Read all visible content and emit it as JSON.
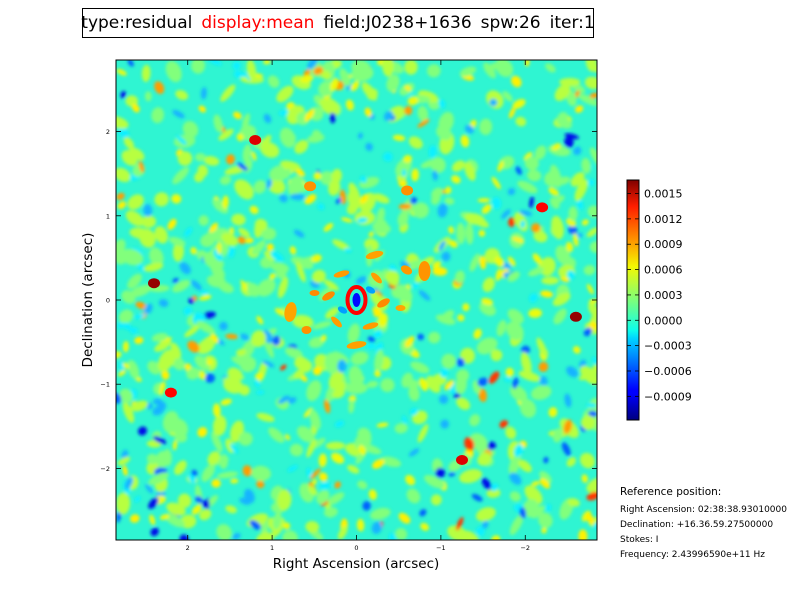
{
  "header": {
    "type": "type:residual",
    "display": "display:mean",
    "field": "field:J0238+1636",
    "spw": "spw:26",
    "iter": "iter:1",
    "highlight_color": "#ff0000"
  },
  "chart_data": {
    "type": "heatmap",
    "xlabel": "Right Ascension (arcsec)",
    "ylabel": "Declination (arcsec)",
    "xlim": [
      2.85,
      -2.85
    ],
    "ylim": [
      -2.85,
      2.85
    ],
    "x_ticks": [
      {
        "value": 2,
        "label": "2"
      },
      {
        "value": 1,
        "label": "1"
      },
      {
        "value": 0,
        "label": "0"
      },
      {
        "value": -1,
        "label": "−1"
      },
      {
        "value": -2,
        "label": "−2"
      }
    ],
    "y_ticks": [
      {
        "value": 2,
        "label": "2"
      },
      {
        "value": 1,
        "label": "1"
      },
      {
        "value": 0,
        "label": "0"
      },
      {
        "value": -1,
        "label": "−1"
      },
      {
        "value": -2,
        "label": "−2"
      }
    ],
    "colormap": "jet",
    "colorbar": {
      "vmin": -0.00118,
      "vmax": 0.00166,
      "ticks": [
        {
          "value": 0.0015,
          "label": "0.0015"
        },
        {
          "value": 0.0012,
          "label": "0.0012"
        },
        {
          "value": 0.0009,
          "label": "0.0009"
        },
        {
          "value": 0.0006,
          "label": "0.0006"
        },
        {
          "value": 0.0003,
          "label": "0.0003"
        },
        {
          "value": 0.0,
          "label": "0.0000"
        },
        {
          "value": -0.0003,
          "label": "−0.0003"
        },
        {
          "value": -0.0006,
          "label": "−0.0006"
        },
        {
          "value": -0.0009,
          "label": "−0.0009"
        }
      ]
    },
    "features": [
      {
        "x": 0.0,
        "y": 0.0,
        "v": 0.0013
      },
      {
        "x": 0.0,
        "y": 0.0,
        "v": -0.0008
      },
      {
        "x": 2.4,
        "y": 0.2,
        "v": 0.0016
      },
      {
        "x": -2.6,
        "y": -0.2,
        "v": 0.0016
      },
      {
        "x": 1.2,
        "y": 1.9,
        "v": 0.0014
      },
      {
        "x": -1.25,
        "y": -1.9,
        "v": 0.0014
      },
      {
        "x": 2.2,
        "y": -1.1,
        "v": 0.0013
      },
      {
        "x": -2.2,
        "y": 1.1,
        "v": 0.0013
      },
      {
        "x": 0.55,
        "y": 1.35,
        "v": 0.0009
      },
      {
        "x": -0.6,
        "y": 1.3,
        "v": 0.0009
      }
    ]
  },
  "reference": {
    "heading": "Reference position:",
    "ra": "Right Ascension: 02:38:38.93010000",
    "dec": "Declination: +16.36.59.27500000",
    "stokes": "Stokes: I",
    "freq": "Frequency: 2.43996590e+11 Hz"
  }
}
